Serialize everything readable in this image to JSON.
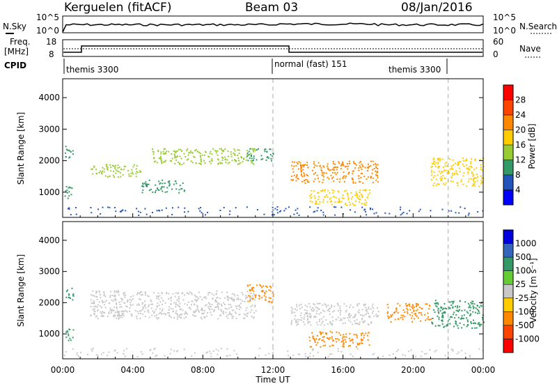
{
  "header": {
    "station": "Kerguelen (fitACF)",
    "beam": "Beam 03",
    "date": "08/Jan/2016"
  },
  "noise_panel": {
    "left_label": "N.Sky",
    "left_ticks": [
      "10^5",
      "10^0"
    ],
    "right_label": "N.Search",
    "right_ticks": [
      "10^5",
      "10^0"
    ]
  },
  "freq_panel": {
    "left_label_1": "Freq.",
    "left_label_2": "[MHz]",
    "left_ticks": [
      "18",
      "8"
    ],
    "right_label": "Nave",
    "right_ticks": [
      "60",
      "0"
    ]
  },
  "cpid": {
    "label": "CPID",
    "modes": [
      {
        "name": "themis 3300",
        "start_hour": 0
      },
      {
        "name": "normal (fast) 151",
        "start_hour": 12.0
      },
      {
        "name": "themis 3300",
        "start_hour": 22.0
      }
    ]
  },
  "power_panel": {
    "ylabel": "Slant Range [km]",
    "colorbar_label": "Power [dB]",
    "colorbar_ticks": [
      "28",
      "24",
      "20",
      "16",
      "12",
      "8",
      "4"
    ],
    "colorbar_colors": [
      "#ff0000",
      "#ff4400",
      "#ff8800",
      "#ffcc00",
      "#99cc33",
      "#339966",
      "#2255bb",
      "#0000ff"
    ]
  },
  "velocity_panel": {
    "ylabel": "Slant Range [km]",
    "colorbar_label": "Velocity [m s⁻¹]",
    "colorbar_ticks": [
      "1000",
      "500",
      "100",
      "25",
      "-25",
      "-100",
      "-500",
      "-1000"
    ],
    "colorbar_colors": [
      "#0000dd",
      "#3366bb",
      "#339966",
      "#66cc33",
      "#c8c8c8",
      "#ffcc00",
      "#ff8800",
      "#ff4400",
      "#ff0000"
    ]
  },
  "x_axis": {
    "label": "Time UT",
    "ticks": [
      "00:00",
      "04:00",
      "08:00",
      "12:00",
      "16:00",
      "20:00",
      "00:00"
    ]
  },
  "chart_data": [
    {
      "type": "heatmap",
      "title": "Power",
      "xlabel": "Time UT",
      "ylabel": "Slant Range [km]",
      "xlim": [
        0,
        24
      ],
      "ylim": [
        200,
        4600
      ],
      "yticks": [
        1000,
        2000,
        3000,
        4000
      ],
      "colorbar": {
        "label": "Power [dB]",
        "ticks": [
          4,
          8,
          12,
          16,
          20,
          24,
          28
        ]
      },
      "regions": [
        {
          "t0": 0.1,
          "t1": 0.6,
          "r0": 800,
          "r1": 1200,
          "value": 12
        },
        {
          "t0": 0.1,
          "t1": 0.6,
          "r0": 2100,
          "r1": 2500,
          "value": 12
        },
        {
          "t0": 1.5,
          "t1": 4.5,
          "r0": 1500,
          "r1": 1900,
          "value": 14
        },
        {
          "t0": 4.5,
          "t1": 7.0,
          "r0": 1000,
          "r1": 1400,
          "value": 10
        },
        {
          "t0": 5.0,
          "t1": 11.0,
          "r0": 1900,
          "r1": 2400,
          "value": 16
        },
        {
          "t0": 10.5,
          "t1": 12.0,
          "r0": 2000,
          "r1": 2400,
          "value": 12
        },
        {
          "t0": 13.0,
          "t1": 18.0,
          "r0": 1300,
          "r1": 2000,
          "value": 24
        },
        {
          "t0": 14.0,
          "t1": 17.5,
          "r0": 600,
          "r1": 1100,
          "value": 20
        },
        {
          "t0": 21.0,
          "t1": 24.0,
          "r0": 1200,
          "r1": 2100,
          "value": 18
        }
      ]
    },
    {
      "type": "heatmap",
      "title": "Velocity",
      "xlabel": "Time UT",
      "ylabel": "Slant Range [km]",
      "xlim": [
        0,
        24
      ],
      "ylim": [
        200,
        4600
      ],
      "yticks": [
        1000,
        2000,
        3000,
        4000
      ],
      "colorbar": {
        "label": "Velocity [m s⁻¹]",
        "ticks": [
          -1000,
          -500,
          -100,
          -25,
          25,
          100,
          500,
          1000
        ]
      },
      "regions": [
        {
          "t0": 0.1,
          "t1": 0.6,
          "r0": 800,
          "r1": 1200,
          "value": 150
        },
        {
          "t0": 0.1,
          "t1": 0.6,
          "r0": 2100,
          "r1": 2500,
          "value": 300
        },
        {
          "t0": 1.5,
          "t1": 11.0,
          "r0": 1500,
          "r1": 2400,
          "value": 0
        },
        {
          "t0": 10.5,
          "t1": 12.0,
          "r0": 2000,
          "r1": 2600,
          "value": -300
        },
        {
          "t0": 13.0,
          "t1": 18.0,
          "r0": 1300,
          "r1": 2000,
          "value": 0
        },
        {
          "t0": 14.0,
          "t1": 17.5,
          "r0": 600,
          "r1": 1100,
          "value": -200
        },
        {
          "t0": 18.5,
          "t1": 21.0,
          "r0": 1400,
          "r1": 2000,
          "value": -400
        },
        {
          "t0": 21.0,
          "t1": 24.0,
          "r0": 1200,
          "r1": 2100,
          "value": 300
        }
      ]
    }
  ]
}
